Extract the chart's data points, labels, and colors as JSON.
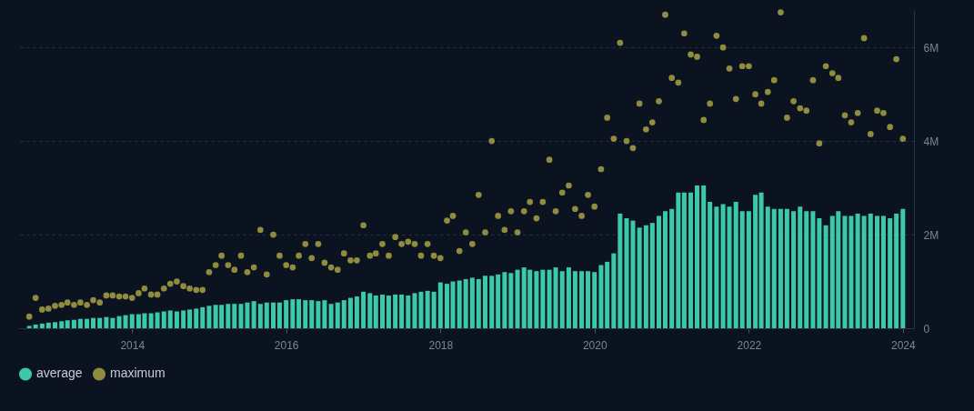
{
  "chart_data": {
    "type": "bar",
    "x": [
      "2012-09",
      "2012-10",
      "2012-11",
      "2012-12",
      "2013-01",
      "2013-02",
      "2013-03",
      "2013-04",
      "2013-05",
      "2013-06",
      "2013-07",
      "2013-08",
      "2013-09",
      "2013-10",
      "2013-11",
      "2013-12",
      "2014-01",
      "2014-02",
      "2014-03",
      "2014-04",
      "2014-05",
      "2014-06",
      "2014-07",
      "2014-08",
      "2014-09",
      "2014-10",
      "2014-11",
      "2014-12",
      "2015-01",
      "2015-02",
      "2015-03",
      "2015-04",
      "2015-05",
      "2015-06",
      "2015-07",
      "2015-08",
      "2015-09",
      "2015-10",
      "2015-11",
      "2015-12",
      "2016-01",
      "2016-02",
      "2016-03",
      "2016-04",
      "2016-05",
      "2016-06",
      "2016-07",
      "2016-08",
      "2016-09",
      "2016-10",
      "2016-11",
      "2016-12",
      "2017-01",
      "2017-02",
      "2017-03",
      "2017-04",
      "2017-05",
      "2017-06",
      "2017-07",
      "2017-08",
      "2017-09",
      "2017-10",
      "2017-11",
      "2017-12",
      "2018-01",
      "2018-02",
      "2018-03",
      "2018-04",
      "2018-05",
      "2018-06",
      "2018-07",
      "2018-08",
      "2018-09",
      "2018-10",
      "2018-11",
      "2018-12",
      "2019-01",
      "2019-02",
      "2019-03",
      "2019-04",
      "2019-05",
      "2019-06",
      "2019-07",
      "2019-08",
      "2019-09",
      "2019-10",
      "2019-11",
      "2019-12",
      "2020-01",
      "2020-02",
      "2020-03",
      "2020-04",
      "2020-05",
      "2020-06",
      "2020-07",
      "2020-08",
      "2020-09",
      "2020-10",
      "2020-11",
      "2020-12",
      "2021-01",
      "2021-02",
      "2021-03",
      "2021-04",
      "2021-05",
      "2021-06",
      "2021-07",
      "2021-08",
      "2021-09",
      "2021-10",
      "2021-11",
      "2021-12",
      "2022-01",
      "2022-02",
      "2022-03",
      "2022-04",
      "2022-05",
      "2022-06",
      "2022-07",
      "2022-08",
      "2022-09",
      "2022-10",
      "2022-11",
      "2022-12",
      "2023-01",
      "2023-02",
      "2023-03",
      "2023-04",
      "2023-05",
      "2023-06",
      "2023-07",
      "2023-08",
      "2023-09",
      "2023-10",
      "2023-11",
      "2023-12",
      "2024-01"
    ],
    "series": [
      {
        "name": "average",
        "color": "#3cc9a8",
        "values": [
          50000,
          80000,
          100000,
          120000,
          130000,
          150000,
          170000,
          180000,
          200000,
          200000,
          220000,
          220000,
          240000,
          220000,
          260000,
          280000,
          300000,
          300000,
          320000,
          320000,
          340000,
          360000,
          380000,
          360000,
          380000,
          400000,
          420000,
          450000,
          480000,
          500000,
          500000,
          520000,
          520000,
          520000,
          550000,
          580000,
          520000,
          550000,
          550000,
          550000,
          600000,
          620000,
          620000,
          600000,
          600000,
          580000,
          600000,
          520000,
          550000,
          600000,
          650000,
          680000,
          780000,
          750000,
          700000,
          720000,
          700000,
          720000,
          720000,
          700000,
          750000,
          780000,
          800000,
          780000,
          980000,
          950000,
          1000000,
          1020000,
          1050000,
          1080000,
          1050000,
          1120000,
          1120000,
          1150000,
          1200000,
          1180000,
          1250000,
          1300000,
          1250000,
          1220000,
          1250000,
          1250000,
          1300000,
          1220000,
          1300000,
          1220000,
          1220000,
          1220000,
          1200000,
          1350000,
          1420000,
          1600000,
          2450000,
          2350000,
          2300000,
          2150000,
          2200000,
          2250000,
          2400000,
          2500000,
          2550000,
          2900000,
          2900000,
          2900000,
          3050000,
          3050000,
          2700000,
          2600000,
          2650000,
          2600000,
          2700000,
          2500000,
          2500000,
          2850000,
          2900000,
          2600000,
          2550000,
          2550000,
          2550000,
          2500000,
          2600000,
          2500000,
          2500000,
          2350000,
          2200000,
          2400000,
          2500000,
          2400000,
          2400000,
          2450000,
          2400000,
          2450000,
          2400000,
          2400000,
          2350000,
          2450000,
          2550000
        ]
      },
      {
        "name": "maximum",
        "type": "scatter",
        "color": "#8f8c3e",
        "values": [
          250000,
          650000,
          400000,
          420000,
          480000,
          500000,
          550000,
          500000,
          550000,
          500000,
          600000,
          550000,
          700000,
          700000,
          680000,
          680000,
          650000,
          750000,
          850000,
          720000,
          720000,
          850000,
          950000,
          1000000,
          900000,
          850000,
          820000,
          820000,
          1200000,
          1350000,
          1550000,
          1350000,
          1250000,
          1550000,
          1200000,
          1300000,
          2100000,
          1150000,
          2000000,
          1550000,
          1350000,
          1300000,
          1550000,
          1800000,
          1500000,
          1800000,
          1400000,
          1300000,
          1250000,
          1600000,
          1450000,
          1450000,
          2200000,
          1550000,
          1600000,
          1800000,
          1550000,
          1950000,
          1800000,
          1850000,
          1800000,
          1550000,
          1800000,
          1550000,
          1500000,
          2300000,
          2400000,
          1650000,
          2050000,
          1800000,
          2850000,
          2050000,
          4000000,
          2400000,
          2100000,
          2500000,
          2050000,
          2500000,
          2700000,
          2350000,
          2700000,
          3600000,
          2500000,
          2900000,
          3050000,
          2550000,
          2400000,
          2850000,
          2600000,
          3400000,
          4500000,
          4050000,
          6100000,
          4000000,
          3850000,
          4800000,
          4250000,
          4400000,
          4850000,
          6700000,
          5350000,
          5250000,
          6300000,
          5850000,
          5800000,
          4450000,
          4800000,
          6250000,
          6000000,
          5550000,
          4900000,
          5600000,
          5600000,
          5000000,
          4800000,
          5050000,
          5300000,
          6750000,
          4500000,
          4850000,
          4700000,
          4650000,
          5300000,
          3950000,
          5600000,
          5450000,
          5350000,
          4550000,
          4400000,
          4600000,
          6200000,
          4150000,
          4650000,
          4600000,
          4300000,
          5750000,
          4050000
        ]
      }
    ],
    "xlim": [
      "2012-08",
      "2024-02"
    ],
    "xticks": [
      "2014",
      "2016",
      "2018",
      "2020",
      "2022",
      "2024"
    ],
    "ylim": [
      0,
      6800000
    ],
    "yticks": [
      0,
      {
        "value": 2000000,
        "label": "2M"
      },
      {
        "value": 4000000,
        "label": "4M"
      },
      {
        "value": 6000000,
        "label": "6M"
      }
    ],
    "grid": "y",
    "legend": "bottom",
    "marker": "circle"
  }
}
